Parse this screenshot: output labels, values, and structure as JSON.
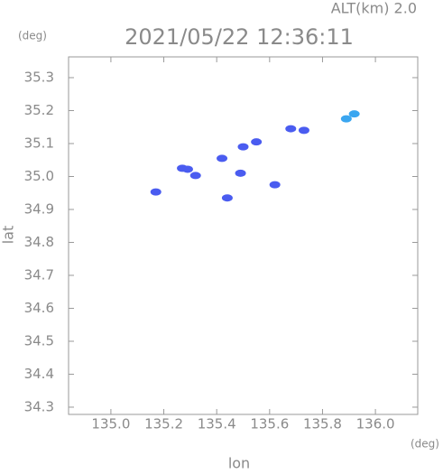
{
  "chart_data": {
    "type": "scatter",
    "title": "2021/05/22 12:36:11",
    "subtitle": "ALT(km) 2.0",
    "x_label": "lon",
    "y_label": "lat",
    "x_unit": "(deg)",
    "y_unit": "(deg)",
    "xlim": [
      134.84,
      136.16
    ],
    "ylim": [
      34.278,
      35.363
    ],
    "xticks": [
      {
        "value": 135.0,
        "label": "135.0"
      },
      135.2,
      135.4,
      135.6,
      135.8,
      {
        "value": 136.0,
        "label": "136.0"
      }
    ],
    "yticks": [
      35.3,
      35.2,
      35.1,
      {
        "value": 35.0,
        "label": "35.0"
      },
      34.9,
      34.8,
      34.7,
      34.6,
      34.5,
      34.4,
      34.3
    ],
    "series": [
      {
        "color": "#4a5cf0",
        "x": [
          135.17,
          135.27,
          135.29,
          135.32,
          135.42,
          135.44,
          135.49,
          135.5,
          135.55,
          135.62,
          135.68,
          135.73
        ],
        "values": [
          34.953,
          35.025,
          35.022,
          35.003,
          35.055,
          34.935,
          35.01,
          35.09,
          35.105,
          34.975,
          35.145,
          35.14
        ]
      },
      {
        "color": "#3aa6f0",
        "x": [
          135.89,
          135.92
        ],
        "values": [
          35.175,
          35.19
        ]
      }
    ]
  }
}
